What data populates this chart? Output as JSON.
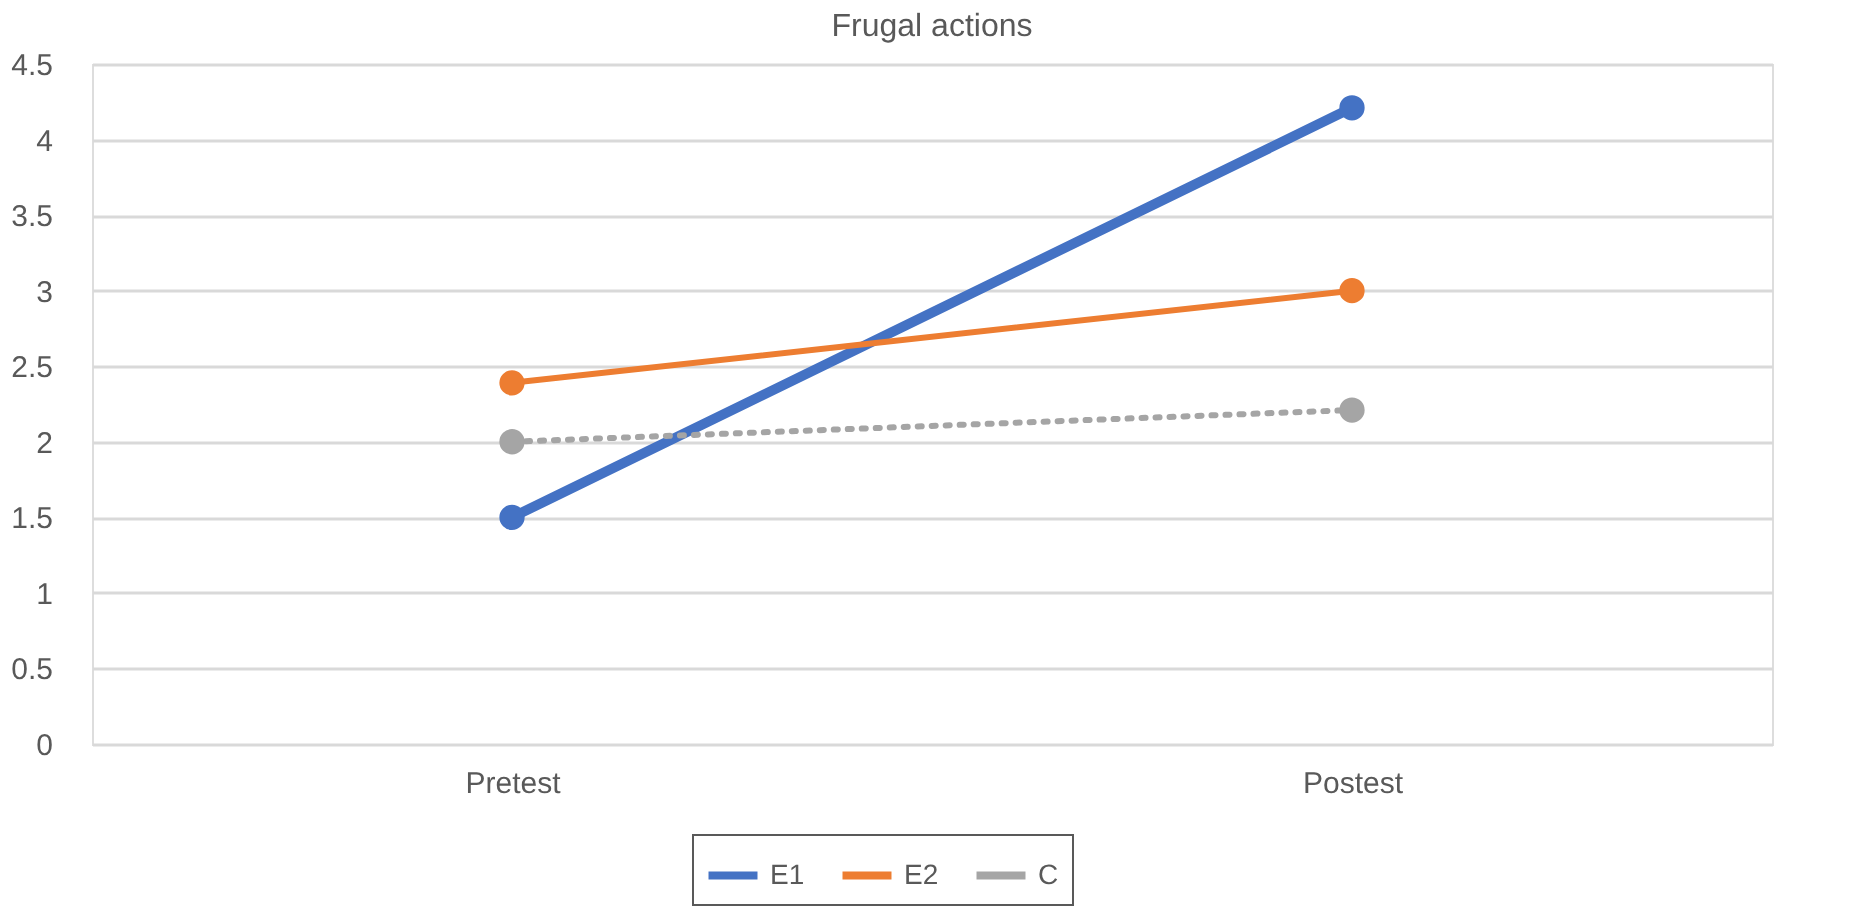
{
  "chart_data": {
    "type": "line",
    "title": "Frugal actions",
    "categories": [
      "Pretest",
      "Postest"
    ],
    "series": [
      {
        "name": "E1",
        "color": "#4472c4",
        "values": [
          1.5,
          4.21
        ],
        "line_style": "solid"
      },
      {
        "name": "E2",
        "color": "#ed7d31",
        "values": [
          2.39,
          3.0
        ],
        "line_style": "solid"
      },
      {
        "name": "C",
        "color": "#a5a5a5",
        "values": [
          2.0,
          2.21
        ],
        "line_style": "dotted"
      }
    ],
    "ylim": [
      0,
      4.5
    ],
    "yticks": [
      0,
      0.5,
      1,
      1.5,
      2,
      2.5,
      3,
      3.5,
      4,
      4.5
    ],
    "grid": "y",
    "legend": "bottom",
    "marker": "circle"
  }
}
